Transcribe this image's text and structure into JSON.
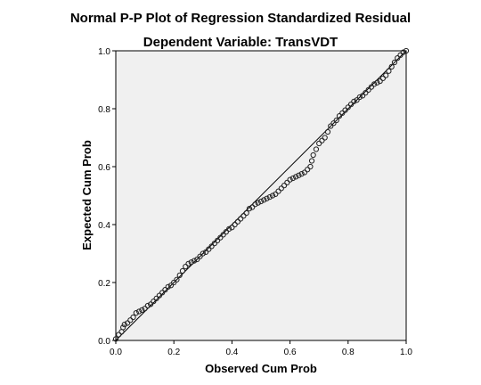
{
  "chart_data": {
    "type": "scatter",
    "title": "Normal P-P Plot of Regression Standardized Residual",
    "subtitle": "Dependent Variable: TransVDT",
    "xlabel": "Observed Cum Prob",
    "ylabel": "Expected Cum Prob",
    "xlim": [
      0,
      1
    ],
    "ylim": [
      0,
      1
    ],
    "xticks": [
      0.0,
      0.2,
      0.4,
      0.6,
      0.8,
      1.0
    ],
    "yticks": [
      0.0,
      0.2,
      0.4,
      0.6,
      0.8,
      1.0
    ],
    "xtick_labels": [
      "0.0",
      "0.2",
      "0.4",
      "0.6",
      "0.8",
      "1.0"
    ],
    "ytick_labels": [
      "0.0",
      "0.2",
      "0.4",
      "0.6",
      "0.8",
      "1.0"
    ],
    "grid": false,
    "reference_line": {
      "from": [
        0,
        0
      ],
      "to": [
        1,
        1
      ]
    },
    "series": [
      {
        "points": [
          [
            0.0,
            0.005
          ],
          [
            0.01,
            0.02
          ],
          [
            0.02,
            0.03
          ],
          [
            0.025,
            0.045
          ],
          [
            0.03,
            0.055
          ],
          [
            0.04,
            0.06
          ],
          [
            0.05,
            0.07
          ],
          [
            0.06,
            0.08
          ],
          [
            0.07,
            0.095
          ],
          [
            0.08,
            0.1
          ],
          [
            0.09,
            0.105
          ],
          [
            0.1,
            0.11
          ],
          [
            0.11,
            0.12
          ],
          [
            0.12,
            0.125
          ],
          [
            0.13,
            0.135
          ],
          [
            0.14,
            0.145
          ],
          [
            0.15,
            0.155
          ],
          [
            0.16,
            0.165
          ],
          [
            0.17,
            0.175
          ],
          [
            0.18,
            0.185
          ],
          [
            0.19,
            0.19
          ],
          [
            0.2,
            0.2
          ],
          [
            0.21,
            0.21
          ],
          [
            0.22,
            0.225
          ],
          [
            0.23,
            0.24
          ],
          [
            0.24,
            0.255
          ],
          [
            0.25,
            0.265
          ],
          [
            0.26,
            0.27
          ],
          [
            0.27,
            0.275
          ],
          [
            0.28,
            0.28
          ],
          [
            0.29,
            0.29
          ],
          [
            0.3,
            0.3
          ],
          [
            0.31,
            0.305
          ],
          [
            0.32,
            0.315
          ],
          [
            0.33,
            0.325
          ],
          [
            0.34,
            0.335
          ],
          [
            0.35,
            0.345
          ],
          [
            0.36,
            0.355
          ],
          [
            0.37,
            0.365
          ],
          [
            0.38,
            0.375
          ],
          [
            0.39,
            0.385
          ],
          [
            0.4,
            0.39
          ],
          [
            0.41,
            0.4
          ],
          [
            0.42,
            0.41
          ],
          [
            0.43,
            0.42
          ],
          [
            0.44,
            0.43
          ],
          [
            0.45,
            0.44
          ],
          [
            0.46,
            0.455
          ],
          [
            0.47,
            0.46
          ],
          [
            0.48,
            0.47
          ],
          [
            0.49,
            0.475
          ],
          [
            0.5,
            0.48
          ],
          [
            0.51,
            0.485
          ],
          [
            0.52,
            0.49
          ],
          [
            0.53,
            0.495
          ],
          [
            0.54,
            0.5
          ],
          [
            0.55,
            0.505
          ],
          [
            0.56,
            0.515
          ],
          [
            0.57,
            0.525
          ],
          [
            0.58,
            0.535
          ],
          [
            0.59,
            0.545
          ],
          [
            0.6,
            0.555
          ],
          [
            0.61,
            0.56
          ],
          [
            0.62,
            0.565
          ],
          [
            0.63,
            0.57
          ],
          [
            0.64,
            0.575
          ],
          [
            0.65,
            0.58
          ],
          [
            0.66,
            0.59
          ],
          [
            0.67,
            0.6
          ],
          [
            0.675,
            0.62
          ],
          [
            0.68,
            0.64
          ],
          [
            0.69,
            0.66
          ],
          [
            0.7,
            0.68
          ],
          [
            0.71,
            0.69
          ],
          [
            0.72,
            0.7
          ],
          [
            0.73,
            0.72
          ],
          [
            0.74,
            0.74
          ],
          [
            0.75,
            0.75
          ],
          [
            0.76,
            0.76
          ],
          [
            0.77,
            0.775
          ],
          [
            0.78,
            0.785
          ],
          [
            0.79,
            0.795
          ],
          [
            0.8,
            0.805
          ],
          [
            0.81,
            0.815
          ],
          [
            0.82,
            0.825
          ],
          [
            0.83,
            0.83
          ],
          [
            0.84,
            0.84
          ],
          [
            0.85,
            0.845
          ],
          [
            0.86,
            0.855
          ],
          [
            0.87,
            0.865
          ],
          [
            0.88,
            0.875
          ],
          [
            0.89,
            0.885
          ],
          [
            0.9,
            0.89
          ],
          [
            0.91,
            0.895
          ],
          [
            0.92,
            0.905
          ],
          [
            0.93,
            0.915
          ],
          [
            0.94,
            0.93
          ],
          [
            0.95,
            0.945
          ],
          [
            0.96,
            0.96
          ],
          [
            0.97,
            0.975
          ],
          [
            0.98,
            0.985
          ],
          [
            0.99,
            0.995
          ],
          [
            1.0,
            1.0
          ]
        ]
      }
    ]
  }
}
